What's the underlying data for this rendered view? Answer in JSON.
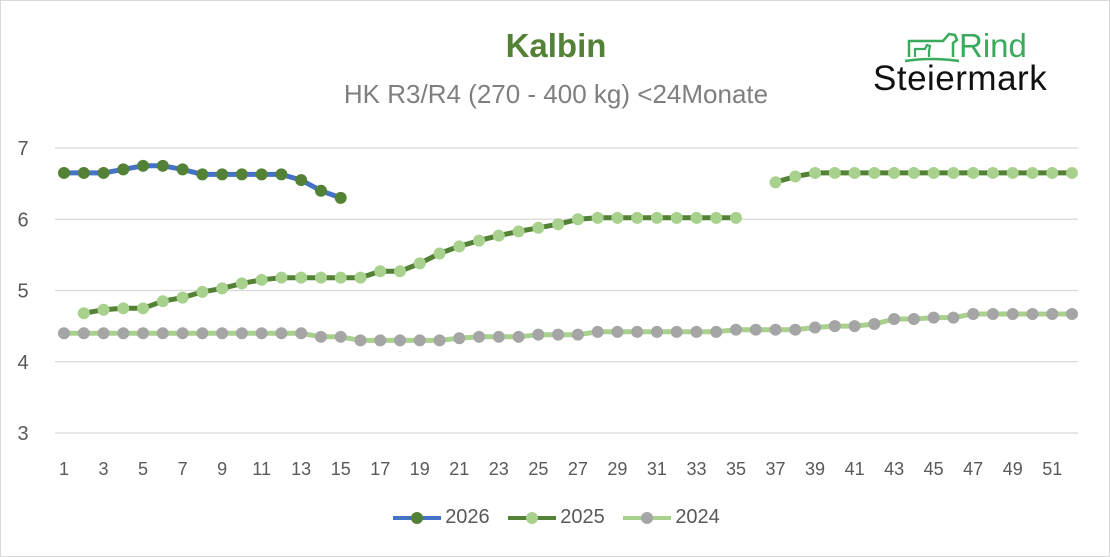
{
  "chart_data": {
    "type": "line",
    "title": "Kalbin",
    "subtitle": "HK R3/R4 (270 - 400 kg) <24Monate",
    "xlabel": "",
    "ylabel": "",
    "ylim": [
      3,
      7
    ],
    "yticks": [
      "7",
      "6",
      "5",
      "4",
      "3"
    ],
    "xticks": [
      "1",
      "3",
      "5",
      "7",
      "9",
      "11",
      "13",
      "15",
      "17",
      "19",
      "21",
      "23",
      "25",
      "27",
      "29",
      "31",
      "33",
      "35",
      "37",
      "39",
      "41",
      "43",
      "45",
      "47",
      "49",
      "51"
    ],
    "x": [
      1,
      2,
      3,
      4,
      5,
      6,
      7,
      8,
      9,
      10,
      11,
      12,
      13,
      14,
      15,
      16,
      17,
      18,
      19,
      20,
      21,
      22,
      23,
      24,
      25,
      26,
      27,
      28,
      29,
      30,
      31,
      32,
      33,
      34,
      35,
      36,
      37,
      38,
      39,
      40,
      41,
      42,
      43,
      44,
      45,
      46,
      47,
      48,
      49,
      50,
      51,
      52
    ],
    "grid": true,
    "legend_position": "bottom",
    "series": [
      {
        "name": "2026",
        "line_color": "#4472c4",
        "marker_color": "#538135",
        "values": [
          6.65,
          6.65,
          6.65,
          6.7,
          6.75,
          6.75,
          6.7,
          6.63,
          6.63,
          6.63,
          6.63,
          6.63,
          6.55,
          6.4,
          6.3,
          null,
          null,
          null,
          null,
          null,
          null,
          null,
          null,
          null,
          null,
          null,
          null,
          null,
          null,
          null,
          null,
          null,
          null,
          null,
          null,
          null,
          null,
          null,
          null,
          null,
          null,
          null,
          null,
          null,
          null,
          null,
          null,
          null,
          null,
          null,
          null,
          null
        ]
      },
      {
        "name": "2025",
        "line_color": "#538135",
        "marker_color": "#a9d18e",
        "values": [
          null,
          4.68,
          4.73,
          4.75,
          4.75,
          4.85,
          4.9,
          4.98,
          5.03,
          5.1,
          5.15,
          5.18,
          5.18,
          5.18,
          5.18,
          5.18,
          5.27,
          5.27,
          5.38,
          5.52,
          5.62,
          5.7,
          5.77,
          5.83,
          5.88,
          5.93,
          6.0,
          6.02,
          6.02,
          6.02,
          6.02,
          6.02,
          6.02,
          6.02,
          6.02,
          null,
          6.52,
          6.6,
          6.65,
          6.65,
          6.65,
          6.65,
          6.65,
          6.65,
          6.65,
          6.65,
          6.65,
          6.65,
          6.65,
          6.65,
          6.65,
          6.65
        ]
      },
      {
        "name": "2024",
        "line_color": "#a9d18e",
        "marker_color": "#a5a5a5",
        "values": [
          4.4,
          4.4,
          4.4,
          4.4,
          4.4,
          4.4,
          4.4,
          4.4,
          4.4,
          4.4,
          4.4,
          4.4,
          4.4,
          4.35,
          4.35,
          4.3,
          4.3,
          4.3,
          4.3,
          4.3,
          4.33,
          4.35,
          4.35,
          4.35,
          4.38,
          4.38,
          4.38,
          4.42,
          4.42,
          4.42,
          4.42,
          4.42,
          4.42,
          4.42,
          4.45,
          4.45,
          4.45,
          4.45,
          4.48,
          4.5,
          4.5,
          4.53,
          4.6,
          4.6,
          4.62,
          4.62,
          4.67,
          4.67,
          4.67,
          4.67,
          4.67,
          4.67
        ]
      }
    ]
  },
  "logo": {
    "word1": "Rind",
    "word2": "Steiermark"
  },
  "legend": {
    "items": [
      "2026",
      "2025",
      "2024"
    ]
  }
}
